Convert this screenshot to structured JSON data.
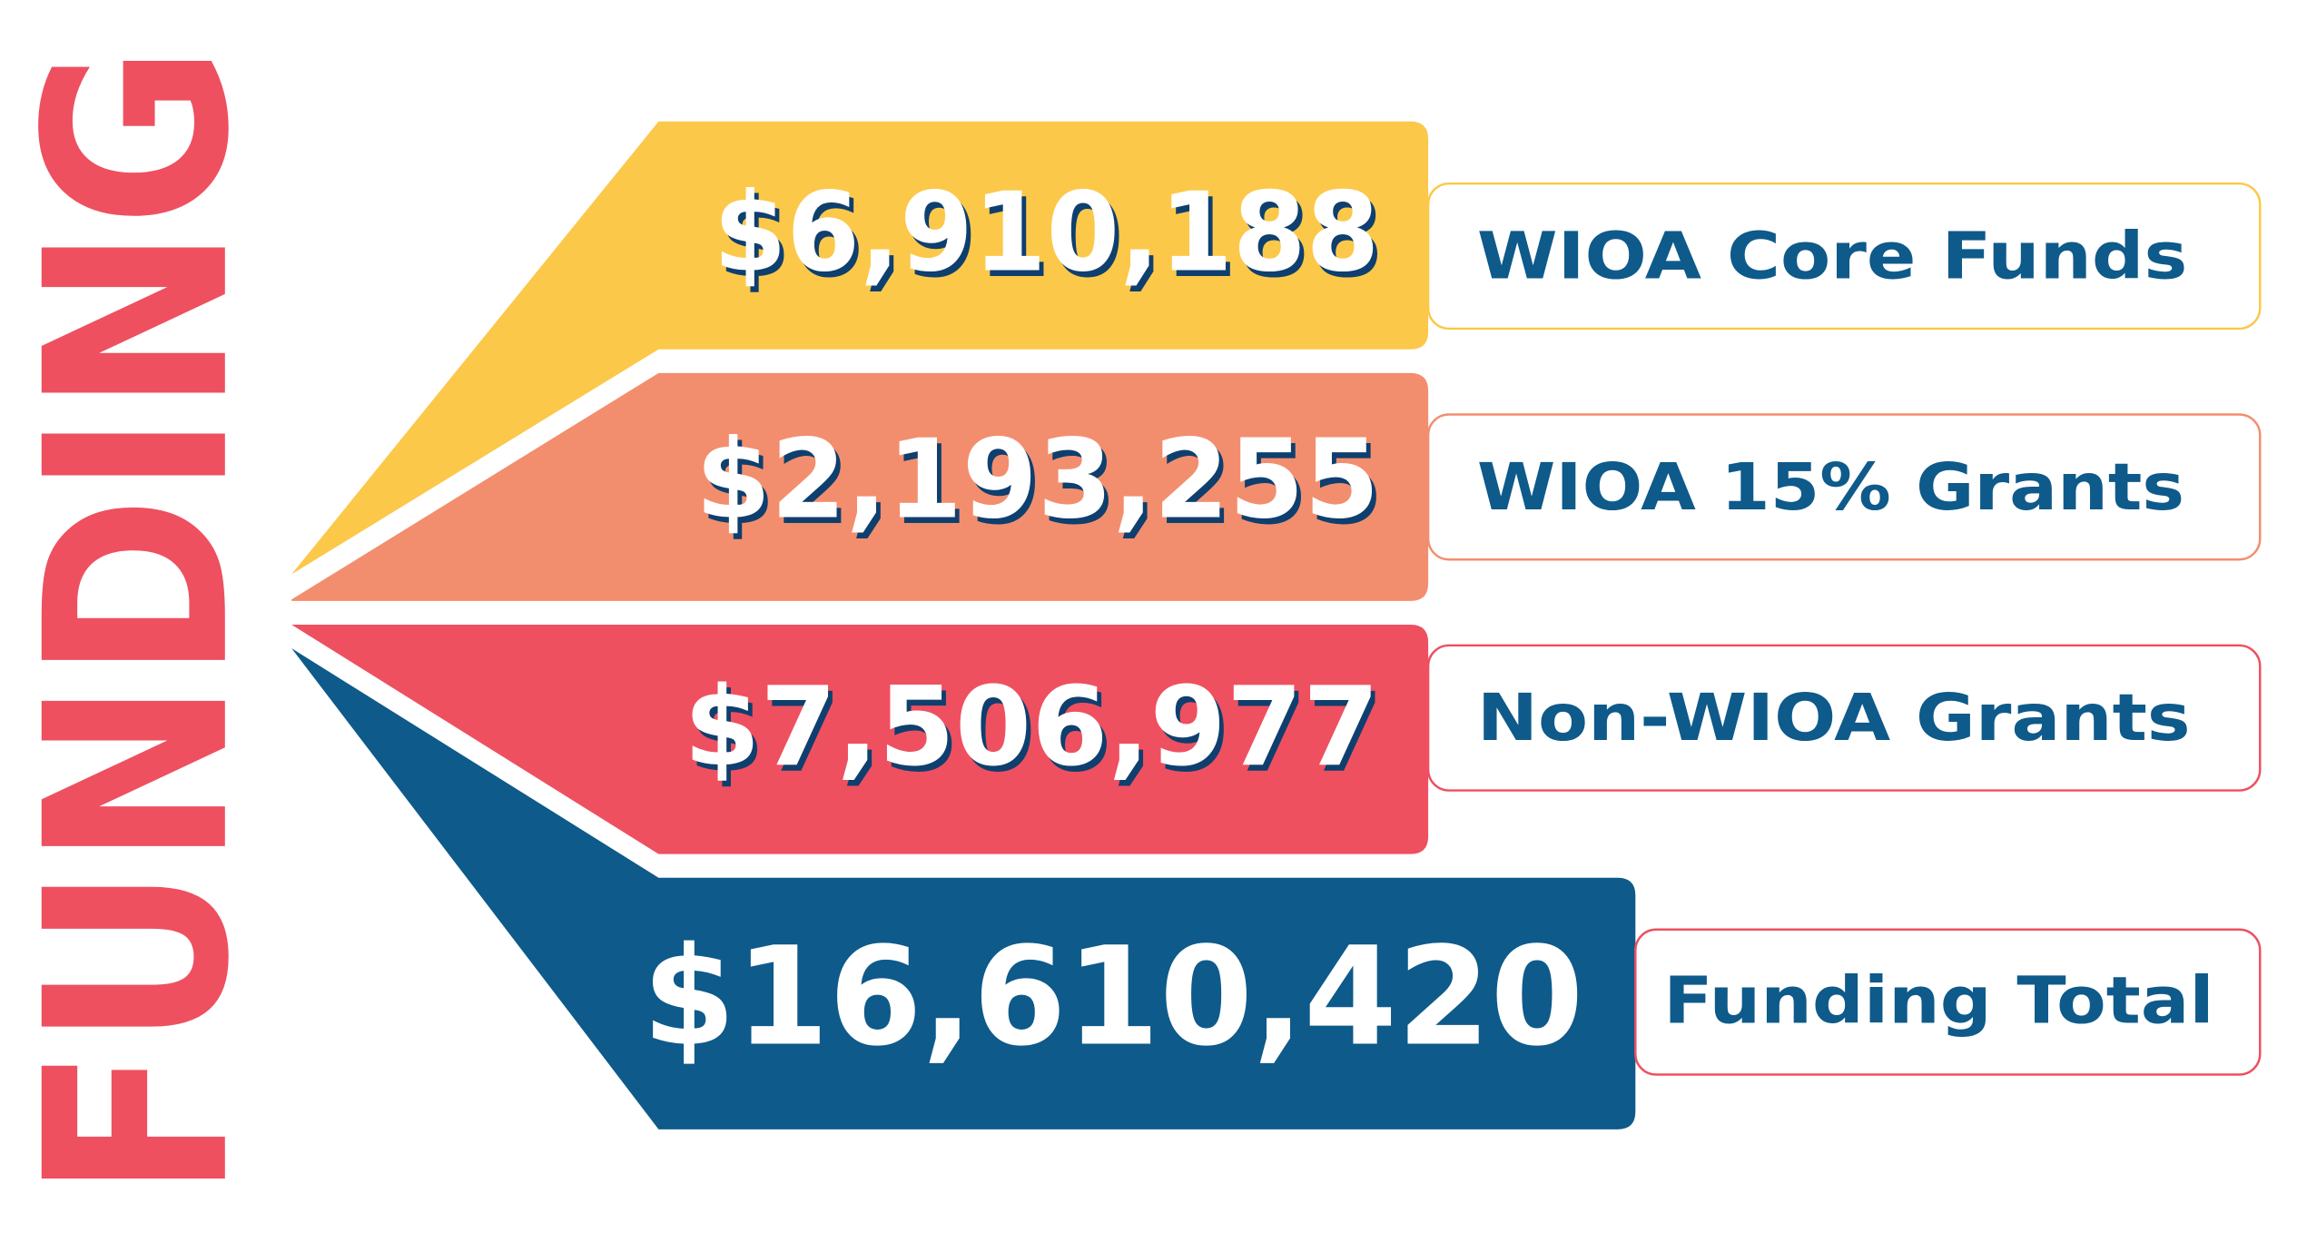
{
  "title": "FUNDING",
  "items": [
    {
      "amount": "$6,910,188",
      "label": "WIOA Core Funds"
    },
    {
      "amount": "$2,193,255",
      "label": "WIOA 15% Grants"
    },
    {
      "amount": "$7,506,977",
      "label": "Non-WIOA Grants"
    }
  ],
  "total": {
    "amount": "$16,610,420",
    "label": "Funding Total"
  }
}
